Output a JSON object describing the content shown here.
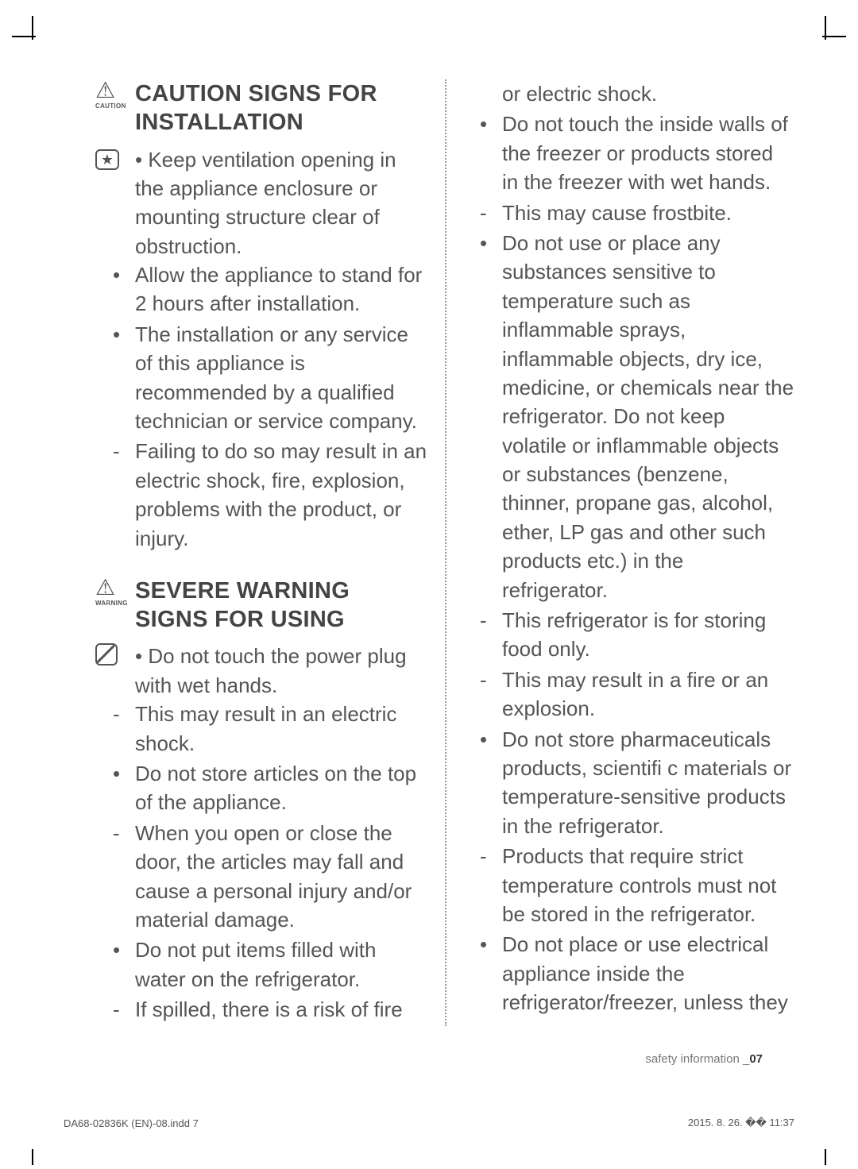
{
  "left": {
    "section1": {
      "iconLabel": "CAUTION",
      "title": "CAUTION SIGNS FOR INSTALLATION",
      "firstItem": "Keep ventilation opening in the appliance enclosure or mounting structure clear of obstruction.",
      "items": [
        {
          "type": "bullet",
          "text": "Allow the appliance to stand for 2 hours after installation."
        },
        {
          "type": "bullet",
          "text": "The installation or any service of this appliance is recommended by a qualified technician or service company."
        },
        {
          "type": "dash",
          "text": "Failing to do so may result in an electric shock, fire, explosion, problems with the product, or injury."
        }
      ]
    },
    "section2": {
      "iconLabel": "WARNING",
      "title": "SEVERE WARNING SIGNS FOR USING",
      "firstItem": "Do not touch the power plug with wet hands.",
      "items": [
        {
          "type": "dash",
          "text": "This may result in an electric shock."
        },
        {
          "type": "bullet",
          "text": "Do not store articles on the top of the appliance."
        },
        {
          "type": "dash",
          "text": "When you open or close the door, the articles may fall and cause a personal injury and/or material damage."
        },
        {
          "type": "bullet",
          "text": "Do not put items filled with water on the refrigerator."
        },
        {
          "type": "dash",
          "text": "If spilled, there is a risk of fire"
        }
      ]
    }
  },
  "right": {
    "cont": "or electric shock.",
    "items": [
      {
        "type": "bullet",
        "text": "Do not touch the inside walls of the freezer or products stored in the freezer with wet hands."
      },
      {
        "type": "dash",
        "text": "This may cause frostbite."
      },
      {
        "type": "bullet",
        "text": "Do not use or place any substances sensitive to temperature such as inflammable sprays, inflammable objects, dry ice, medicine, or chemicals near the refrigerator. Do not keep volatile or inflammable objects or substances (benzene, thinner, propane gas, alcohol, ether, LP gas and other such products etc.) in the refrigerator."
      },
      {
        "type": "dash",
        "text": "This refrigerator is for storing food only."
      },
      {
        "type": "dash",
        "text": "This may result in a fire or an explosion."
      },
      {
        "type": "bullet",
        "text": "Do not store pharmaceuticals products, scientifi c materials or temperature-sensitive products in the refrigerator."
      },
      {
        "type": "dash",
        "text": "Products that require strict temperature controls must not be stored in the refrigerator."
      },
      {
        "type": "bullet",
        "text": "Do not place or use electrical appliance inside the refrigerator/freezer, unless they"
      }
    ]
  },
  "footer": {
    "label": "safety information _",
    "page": "07",
    "printLeft": "DA68-02836K (EN)-08.indd   7",
    "printRight": "2015. 8. 26.   �� 11:37"
  }
}
